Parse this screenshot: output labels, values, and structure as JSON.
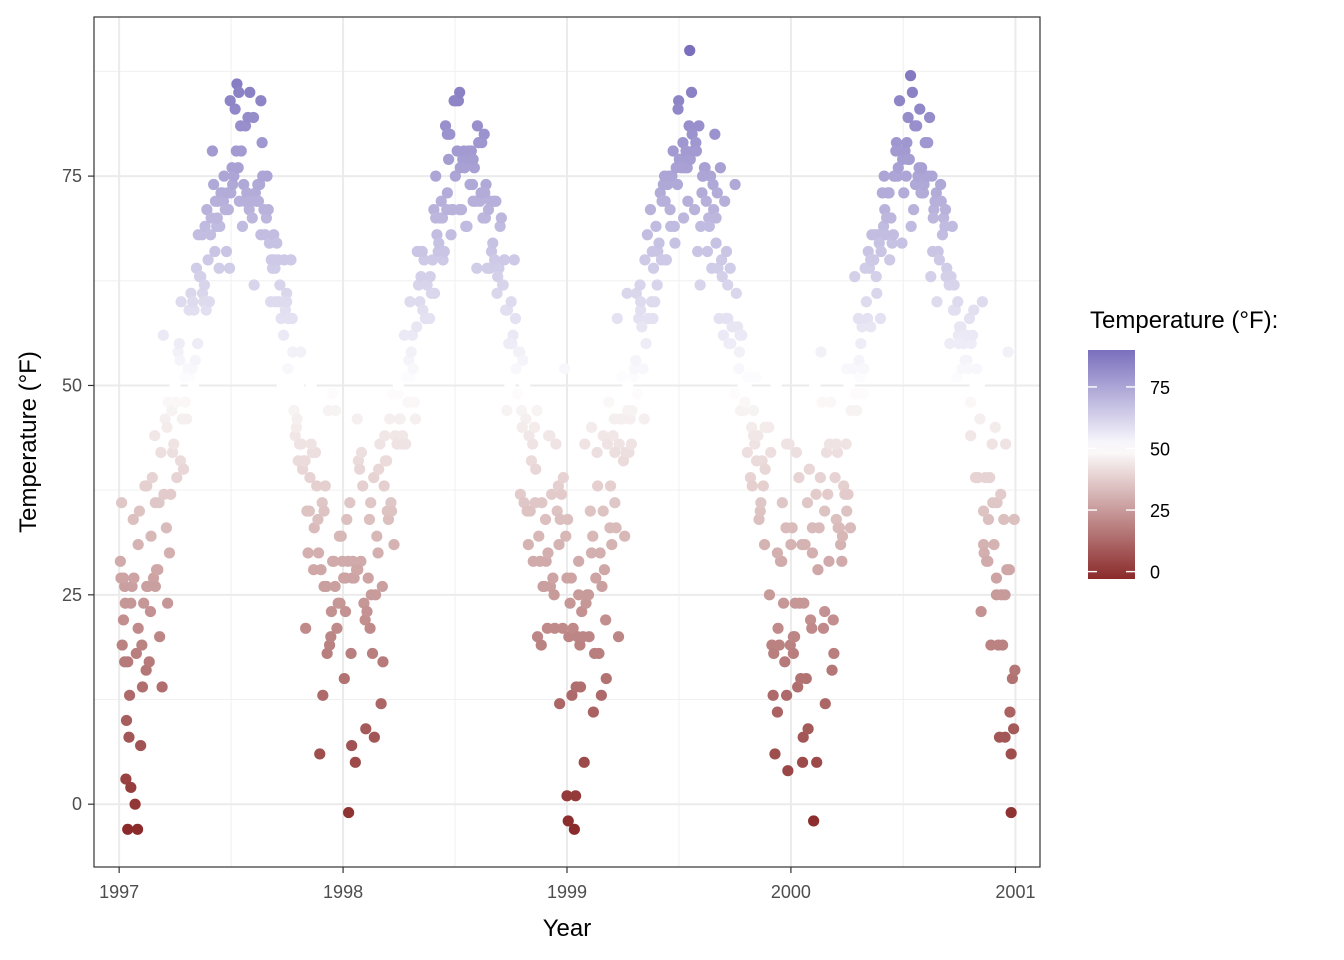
{
  "chart_data": {
    "type": "scatter",
    "xlabel": "Year",
    "ylabel": "Temperature (°F)",
    "x_ticks": [
      "1997",
      "1998",
      "1999",
      "2000",
      "2001"
    ],
    "y_ticks": [
      "0",
      "25",
      "50",
      "75"
    ],
    "xlim": [
      "1996-11-21",
      "2001-02-10"
    ],
    "ylim": [
      -7.5,
      94
    ],
    "grid": true,
    "legend": {
      "title": "Temperature (°F):",
      "placement": "right",
      "type": "continuous-colorbar",
      "breaks": [
        "0",
        "25",
        "50",
        "75"
      ],
      "range": [
        -3,
        90
      ],
      "low_color": "#8b2a2a",
      "mid_color": "#ffffff",
      "high_color": "#7a6fbd",
      "midpoint": 50
    },
    "seasonal_temperature_profile": {
      "description_unit": "°F",
      "year_cycle_min_month": "January",
      "year_cycle_max_month": "July",
      "min_observed": -3,
      "max_observed": 90,
      "representative_points": [
        [
          "1997-01-05",
          36
        ],
        [
          "1997-01-08",
          27
        ],
        [
          "1997-01-10",
          17
        ],
        [
          "1997-01-12",
          3
        ],
        [
          "1997-01-15",
          -3
        ],
        [
          "1997-01-20",
          2
        ],
        [
          "1997-02-01",
          31
        ],
        [
          "1997-02-15",
          26
        ],
        [
          "1997-03-01",
          36
        ],
        [
          "1997-03-20",
          45
        ],
        [
          "1997-04-10",
          53
        ],
        [
          "1997-05-01",
          60
        ],
        [
          "1997-05-20",
          62
        ],
        [
          "1997-06-10",
          70
        ],
        [
          "1997-07-01",
          84
        ],
        [
          "1997-07-15",
          85
        ],
        [
          "1997-08-01",
          72
        ],
        [
          "1997-08-20",
          68
        ],
        [
          "1997-09-10",
          65
        ],
        [
          "1997-10-01",
          60
        ],
        [
          "1997-10-20",
          50
        ],
        [
          "1997-11-10",
          43
        ],
        [
          "1997-12-01",
          35
        ],
        [
          "1997-12-15",
          29
        ],
        [
          "1998-01-05",
          23
        ],
        [
          "1998-01-15",
          7
        ],
        [
          "1998-01-25",
          28
        ],
        [
          "1998-02-15",
          36
        ],
        [
          "1998-03-10",
          44
        ],
        [
          "1998-04-01",
          50
        ],
        [
          "1998-04-20",
          60
        ],
        [
          "1998-05-10",
          66
        ],
        [
          "1998-06-01",
          75
        ],
        [
          "1998-06-20",
          80
        ],
        [
          "1998-07-10",
          85
        ],
        [
          "1998-08-01",
          77
        ],
        [
          "1998-08-20",
          73
        ],
        [
          "1998-09-10",
          63
        ],
        [
          "1998-10-01",
          55
        ],
        [
          "1998-10-20",
          45
        ],
        [
          "1998-11-10",
          36
        ],
        [
          "1998-12-01",
          30
        ],
        [
          "1998-12-20",
          12
        ],
        [
          "1999-01-01",
          1
        ],
        [
          "1999-01-03",
          -2
        ],
        [
          "1999-01-20",
          25
        ],
        [
          "1999-02-10",
          30
        ],
        [
          "1999-03-01",
          35
        ],
        [
          "1999-03-20",
          42
        ],
        [
          "1999-04-10",
          50
        ],
        [
          "1999-05-01",
          60
        ],
        [
          "1999-05-20",
          66
        ],
        [
          "1999-06-10",
          72
        ],
        [
          "1999-07-01",
          83
        ],
        [
          "1999-07-20",
          90
        ],
        [
          "1999-08-10",
          75
        ],
        [
          "1999-09-01",
          67
        ],
        [
          "1999-09-20",
          62
        ],
        [
          "1999-10-10",
          56
        ],
        [
          "1999-11-01",
          47
        ],
        [
          "1999-11-20",
          40
        ],
        [
          "1999-12-10",
          30
        ],
        [
          "1999-12-25",
          13
        ],
        [
          "2000-01-05",
          20
        ],
        [
          "2000-01-20",
          5
        ],
        [
          "2000-02-05",
          30
        ],
        [
          "2000-02-25",
          35
        ],
        [
          "2000-03-15",
          43
        ],
        [
          "2000-04-01",
          52
        ],
        [
          "2000-04-20",
          58
        ],
        [
          "2000-05-10",
          65
        ],
        [
          "2000-06-01",
          75
        ],
        [
          "2000-06-20",
          78
        ],
        [
          "2000-07-10",
          82
        ],
        [
          "2000-08-01",
          76
        ],
        [
          "2000-08-20",
          70
        ],
        [
          "2000-09-10",
          63
        ],
        [
          "2000-10-01",
          55
        ],
        [
          "2000-10-20",
          44
        ],
        [
          "2000-11-10",
          35
        ],
        [
          "2000-12-01",
          25
        ],
        [
          "2000-12-15",
          8
        ],
        [
          "2000-12-25",
          -1
        ],
        [
          "2000-12-31",
          16
        ]
      ]
    }
  }
}
